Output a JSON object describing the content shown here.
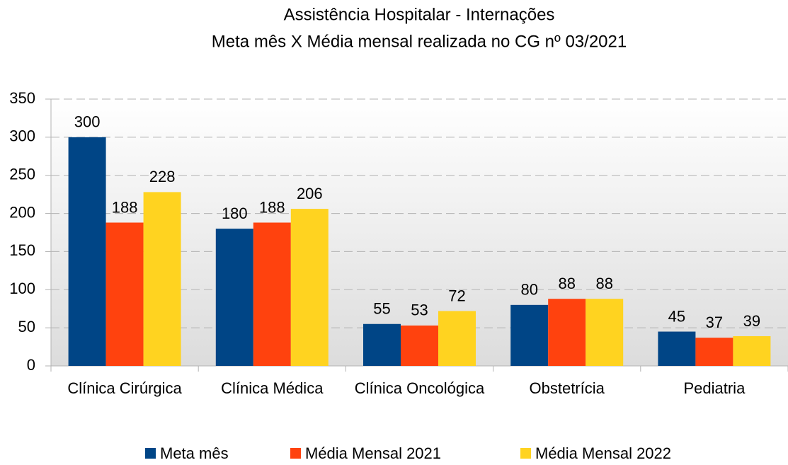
{
  "chart_data": {
    "type": "bar",
    "title": "Assistência Hospitalar - Internações",
    "subtitle": "Meta mês X Média mensal realizada no CG nº 03/2021",
    "categories": [
      "Clínica Cirúrgica",
      "Clínica Médica",
      "Clínica Oncológica",
      "Obstetrícia",
      "Pediatria"
    ],
    "series": [
      {
        "name": "Meta mês",
        "color": "#004586",
        "values": [
          300,
          180,
          55,
          80,
          45
        ]
      },
      {
        "name": "Média Mensal 2021",
        "color": "#ff420e",
        "values": [
          188,
          188,
          53,
          88,
          37
        ]
      },
      {
        "name": "Média Mensal 2022",
        "color": "#ffd320",
        "values": [
          228,
          206,
          72,
          88,
          39
        ]
      }
    ],
    "ylim": [
      0,
      350
    ],
    "yticks": [
      0,
      50,
      100,
      150,
      200,
      250,
      300,
      350
    ],
    "grid": true,
    "legend": "bottom"
  }
}
